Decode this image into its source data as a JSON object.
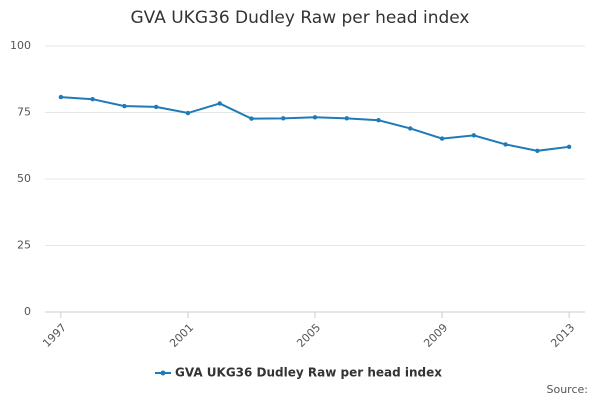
{
  "chart_data": {
    "type": "line",
    "title": "GVA UKG36 Dudley Raw per head index",
    "x": [
      1997,
      1998,
      1999,
      2000,
      2001,
      2002,
      2003,
      2004,
      2005,
      2006,
      2007,
      2008,
      2009,
      2010,
      2011,
      2012,
      2013
    ],
    "series": [
      {
        "name": "GVA UKG36 Dudley Raw per head index",
        "color": "#1f7ab8",
        "values": [
          80.8,
          80.0,
          77.4,
          77.1,
          74.8,
          78.4,
          72.7,
          72.8,
          73.2,
          72.8,
          72.1,
          69.0,
          65.2,
          66.4,
          63.0,
          60.6,
          62.1
        ]
      }
    ],
    "xlim": [
      1996.5,
      2013.5
    ],
    "xticks": [
      1997,
      2001,
      2005,
      2009,
      2013
    ],
    "ylim": [
      0,
      100
    ],
    "yticks": [
      0,
      25,
      50,
      75,
      100
    ],
    "grid": true,
    "legend": "bottom",
    "source": "Source:"
  }
}
